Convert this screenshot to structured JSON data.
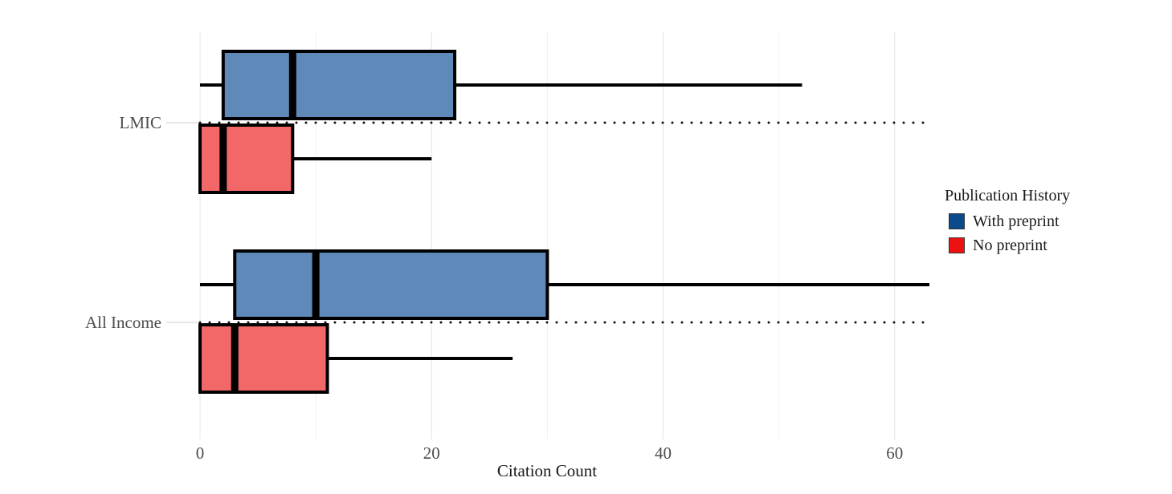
{
  "chart_data": {
    "type": "boxplot",
    "orientation": "horizontal",
    "xlabel": "Citation Count",
    "ylabel": "",
    "title": "",
    "xlim": [
      0,
      63
    ],
    "xticks": [
      0,
      20,
      40,
      60
    ],
    "grid": true,
    "legend": {
      "title": "Publication History",
      "position": "right",
      "entries": [
        {
          "label": "With preprint",
          "color": "#0b4a8b"
        },
        {
          "label": "No preprint",
          "color": "#ee1111"
        }
      ]
    },
    "categories": [
      "LMIC",
      "All Income"
    ],
    "series": [
      {
        "name": "With preprint",
        "box_fill": "#5f89b9",
        "boxes": [
          {
            "category": "LMIC",
            "whisker_low": 0,
            "q1": 2,
            "median": 8,
            "q3": 22,
            "whisker_high": 52
          },
          {
            "category": "All Income",
            "whisker_low": 0,
            "q1": 3,
            "median": 10,
            "q3": 30,
            "whisker_high": 63
          }
        ]
      },
      {
        "name": "No preprint",
        "box_fill": "#f26868",
        "boxes": [
          {
            "category": "LMIC",
            "whisker_low": 0,
            "q1": 0,
            "median": 2,
            "q3": 8,
            "whisker_high": 20
          },
          {
            "category": "All Income",
            "whisker_low": 0,
            "q1": 0,
            "median": 3,
            "q3": 11,
            "whisker_high": 27
          }
        ]
      }
    ]
  }
}
